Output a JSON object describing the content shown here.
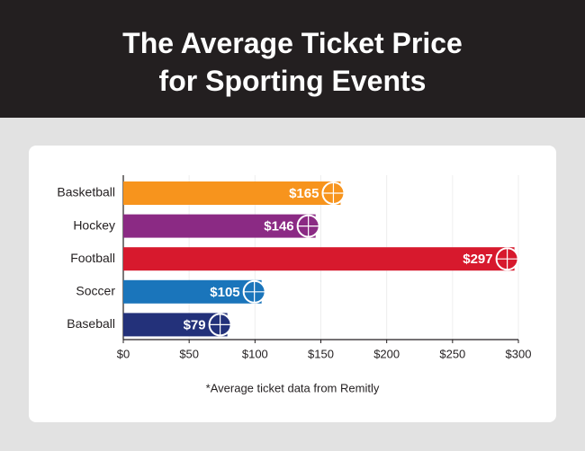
{
  "chart_data": {
    "type": "bar",
    "orientation": "horizontal",
    "title": "The Average Ticket Price for Sporting Events",
    "categories": [
      "Basketball",
      "Hockey",
      "Football",
      "Soccer",
      "Baseball"
    ],
    "values": [
      165,
      146,
      297,
      105,
      79
    ],
    "value_labels": [
      "$165",
      "$146",
      "$297",
      "$105",
      "$79"
    ],
    "colors": [
      "#f7941d",
      "#8b2a84",
      "#d7192d",
      "#1a75bb",
      "#23317a"
    ],
    "xlim": [
      0,
      300
    ],
    "xticks": [
      {
        "value": 0,
        "label": "$0"
      },
      {
        "value": 50,
        "label": "$50"
      },
      {
        "value": 100,
        "label": "$100"
      },
      {
        "value": 150,
        "label": "$150"
      },
      {
        "value": 200,
        "label": "$200"
      },
      {
        "value": 250,
        "label": "$250"
      },
      {
        "value": 300,
        "label": "$300"
      }
    ],
    "grid": true,
    "footnote": "*Average ticket data from Remitly"
  }
}
